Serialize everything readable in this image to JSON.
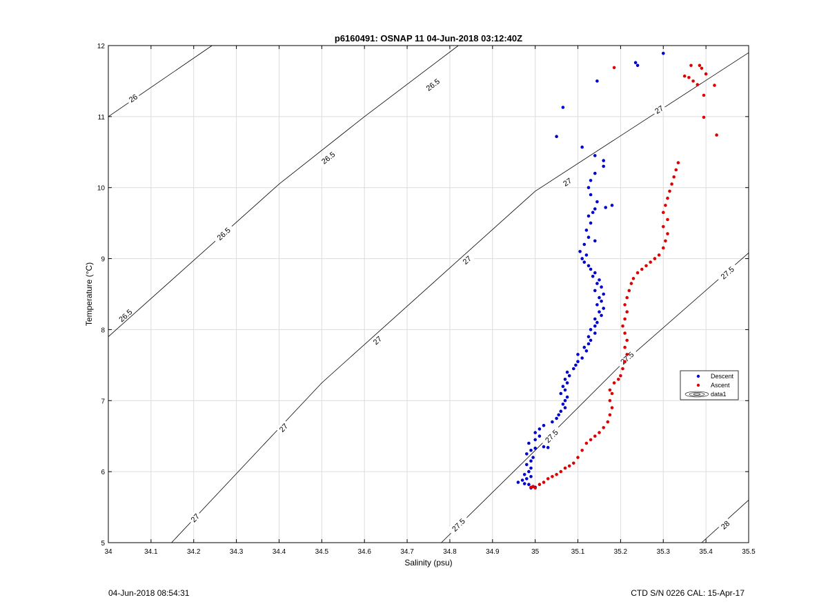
{
  "footer": {
    "left": "04-Jun-2018 08:54:31",
    "right": "CTD S/N 0226  CAL: 15-Apr-17"
  },
  "colors": {
    "descent": "#0000cc",
    "ascent": "#dd0000",
    "contour": "#000000",
    "grid": "#dcdcdc"
  },
  "chart_data": {
    "type": "scatter",
    "title": "p6160491: OSNAP 11 04-Jun-2018 03:12:40Z",
    "xlabel": "Salinity (psu)",
    "ylabel": "Temperature (°C)",
    "xlim": [
      34,
      35.5
    ],
    "ylim": [
      5,
      12
    ],
    "xticks": [
      34,
      34.1,
      34.2,
      34.3,
      34.4,
      34.5,
      34.6,
      34.7,
      34.8,
      34.9,
      35,
      35.1,
      35.2,
      35.3,
      35.4,
      35.5
    ],
    "xtick_labels": [
      "34",
      "34.1",
      "34.2",
      "34.3",
      "34.4",
      "34.5",
      "34.6",
      "34.7",
      "34.8",
      "34.9",
      "35",
      "35.1",
      "35.2",
      "35.3",
      "35.4",
      "35.5"
    ],
    "yticks": [
      5,
      6,
      7,
      8,
      9,
      10,
      11,
      12
    ],
    "ytick_labels": [
      "5",
      "6",
      "7",
      "8",
      "9",
      "10",
      "11",
      "12"
    ],
    "grid": true,
    "legend_position": "right",
    "legend": [
      "Descent",
      "Ascent",
      "data1"
    ],
    "density_contours": [
      {
        "label": "26",
        "points": [
          [
            34.0,
            11.0
          ],
          [
            34.243,
            12.0
          ]
        ],
        "label_at": [
          [
            34.058,
            11.26
          ]
        ]
      },
      {
        "label": "26.5",
        "points": [
          [
            34.0,
            7.9
          ],
          [
            34.4,
            10.05
          ],
          [
            34.6,
            11.0
          ],
          [
            34.82,
            12.0
          ]
        ],
        "label_at": [
          [
            34.04,
            8.2
          ],
          [
            34.27,
            9.35
          ],
          [
            34.515,
            10.42
          ],
          [
            34.76,
            11.45
          ]
        ]
      },
      {
        "label": "27",
        "points": [
          [
            34.148,
            5.0
          ],
          [
            34.5,
            7.25
          ],
          [
            35.0,
            9.95
          ],
          [
            35.5,
            11.9
          ]
        ],
        "label_at": [
          [
            34.203,
            5.35
          ],
          [
            34.41,
            6.62
          ],
          [
            34.63,
            7.85
          ],
          [
            34.84,
            8.98
          ],
          [
            35.075,
            10.08
          ],
          [
            35.29,
            11.1
          ]
        ]
      },
      {
        "label": "27.5",
        "points": [
          [
            34.78,
            5.0
          ],
          [
            35.0,
            6.3
          ],
          [
            35.2,
            7.5
          ],
          [
            35.5,
            9.08
          ]
        ],
        "label_at": [
          [
            34.82,
            5.25
          ],
          [
            35.038,
            6.5
          ],
          [
            35.215,
            7.6
          ],
          [
            35.45,
            8.8
          ]
        ]
      },
      {
        "label": "28",
        "points": [
          [
            35.39,
            5.0
          ],
          [
            35.5,
            5.6
          ]
        ],
        "label_at": [
          [
            35.445,
            5.25
          ]
        ]
      }
    ],
    "series": [
      {
        "name": "Descent",
        "color": "#0000cc",
        "points": [
          [
            34.99,
            5.77
          ],
          [
            34.995,
            5.79
          ],
          [
            35.0,
            5.78
          ],
          [
            34.985,
            5.82
          ],
          [
            34.975,
            5.83
          ],
          [
            34.96,
            5.85
          ],
          [
            34.97,
            5.88
          ],
          [
            34.98,
            5.9
          ],
          [
            34.99,
            5.93
          ],
          [
            34.975,
            5.96
          ],
          [
            34.985,
            6.0
          ],
          [
            34.99,
            6.05
          ],
          [
            34.98,
            6.1
          ],
          [
            34.99,
            6.15
          ],
          [
            34.995,
            6.2
          ],
          [
            34.98,
            6.25
          ],
          [
            34.99,
            6.3
          ],
          [
            35.0,
            6.33
          ],
          [
            35.02,
            6.35
          ],
          [
            35.03,
            6.34
          ],
          [
            34.985,
            6.4
          ],
          [
            35.0,
            6.45
          ],
          [
            35.01,
            6.5
          ],
          [
            35.0,
            6.55
          ],
          [
            35.01,
            6.6
          ],
          [
            35.02,
            6.65
          ],
          [
            35.04,
            6.7
          ],
          [
            35.05,
            6.75
          ],
          [
            35.055,
            6.8
          ],
          [
            35.06,
            6.85
          ],
          [
            35.07,
            6.9
          ],
          [
            35.065,
            6.95
          ],
          [
            35.07,
            7.0
          ],
          [
            35.075,
            7.05
          ],
          [
            35.06,
            7.1
          ],
          [
            35.07,
            7.15
          ],
          [
            35.065,
            7.2
          ],
          [
            35.075,
            7.25
          ],
          [
            35.07,
            7.3
          ],
          [
            35.08,
            7.35
          ],
          [
            35.075,
            7.4
          ],
          [
            35.09,
            7.45
          ],
          [
            35.095,
            7.5
          ],
          [
            35.1,
            7.55
          ],
          [
            35.11,
            7.6
          ],
          [
            35.1,
            7.65
          ],
          [
            35.12,
            7.7
          ],
          [
            35.115,
            7.75
          ],
          [
            35.125,
            7.8
          ],
          [
            35.13,
            7.85
          ],
          [
            35.125,
            7.9
          ],
          [
            35.14,
            7.95
          ],
          [
            35.13,
            8.0
          ],
          [
            35.14,
            8.05
          ],
          [
            35.145,
            8.1
          ],
          [
            35.14,
            8.15
          ],
          [
            35.155,
            8.2
          ],
          [
            35.15,
            8.25
          ],
          [
            35.16,
            8.3
          ],
          [
            35.145,
            8.35
          ],
          [
            35.155,
            8.4
          ],
          [
            35.15,
            8.45
          ],
          [
            35.16,
            8.5
          ],
          [
            35.14,
            8.55
          ],
          [
            35.155,
            8.6
          ],
          [
            35.145,
            8.65
          ],
          [
            35.15,
            8.7
          ],
          [
            35.135,
            8.75
          ],
          [
            35.14,
            8.8
          ],
          [
            35.13,
            8.85
          ],
          [
            35.125,
            8.9
          ],
          [
            35.115,
            8.95
          ],
          [
            35.11,
            9.0
          ],
          [
            35.12,
            9.05
          ],
          [
            35.105,
            9.1
          ],
          [
            35.115,
            9.2
          ],
          [
            35.14,
            9.25
          ],
          [
            35.125,
            9.3
          ],
          [
            35.12,
            9.4
          ],
          [
            35.13,
            9.5
          ],
          [
            35.125,
            9.6
          ],
          [
            35.135,
            9.65
          ],
          [
            35.14,
            9.7
          ],
          [
            35.165,
            9.72
          ],
          [
            35.18,
            9.75
          ],
          [
            35.145,
            9.8
          ],
          [
            35.13,
            9.9
          ],
          [
            35.125,
            10.0
          ],
          [
            35.13,
            10.1
          ],
          [
            35.14,
            10.2
          ],
          [
            35.16,
            10.3
          ],
          [
            35.16,
            10.38
          ],
          [
            35.14,
            10.45
          ],
          [
            35.11,
            10.57
          ],
          [
            35.05,
            10.72
          ],
          [
            35.065,
            11.13
          ],
          [
            35.145,
            11.5
          ],
          [
            35.24,
            11.72
          ],
          [
            35.235,
            11.76
          ],
          [
            35.3,
            11.89
          ]
        ]
      },
      {
        "name": "Ascent",
        "color": "#dd0000",
        "points": [
          [
            34.99,
            5.78
          ],
          [
            35.0,
            5.77
          ],
          [
            34.995,
            5.79
          ],
          [
            35.01,
            5.82
          ],
          [
            35.02,
            5.85
          ],
          [
            35.03,
            5.9
          ],
          [
            35.04,
            5.93
          ],
          [
            35.05,
            5.96
          ],
          [
            35.06,
            6.0
          ],
          [
            35.07,
            6.05
          ],
          [
            35.08,
            6.08
          ],
          [
            35.09,
            6.12
          ],
          [
            35.1,
            6.2
          ],
          [
            35.11,
            6.3
          ],
          [
            35.12,
            6.4
          ],
          [
            35.13,
            6.45
          ],
          [
            35.14,
            6.5
          ],
          [
            35.15,
            6.55
          ],
          [
            35.16,
            6.62
          ],
          [
            35.17,
            6.7
          ],
          [
            35.175,
            6.8
          ],
          [
            35.18,
            6.9
          ],
          [
            35.175,
            7.0
          ],
          [
            35.18,
            7.1
          ],
          [
            35.175,
            7.15
          ],
          [
            35.185,
            7.25
          ],
          [
            35.195,
            7.3
          ],
          [
            35.2,
            7.35
          ],
          [
            35.205,
            7.45
          ],
          [
            35.21,
            7.55
          ],
          [
            35.215,
            7.65
          ],
          [
            35.21,
            7.75
          ],
          [
            35.215,
            7.85
          ],
          [
            35.21,
            7.95
          ],
          [
            35.205,
            8.05
          ],
          [
            35.21,
            8.15
          ],
          [
            35.215,
            8.25
          ],
          [
            35.21,
            8.35
          ],
          [
            35.215,
            8.45
          ],
          [
            35.22,
            8.55
          ],
          [
            35.225,
            8.65
          ],
          [
            35.23,
            8.72
          ],
          [
            35.24,
            8.8
          ],
          [
            35.25,
            8.85
          ],
          [
            35.26,
            8.9
          ],
          [
            35.27,
            8.95
          ],
          [
            35.28,
            9.0
          ],
          [
            35.29,
            9.05
          ],
          [
            35.3,
            9.15
          ],
          [
            35.305,
            9.25
          ],
          [
            35.31,
            9.35
          ],
          [
            35.3,
            9.45
          ],
          [
            35.31,
            9.55
          ],
          [
            35.3,
            9.65
          ],
          [
            35.305,
            9.75
          ],
          [
            35.31,
            9.85
          ],
          [
            35.315,
            9.95
          ],
          [
            35.32,
            10.05
          ],
          [
            35.325,
            10.15
          ],
          [
            35.33,
            10.25
          ],
          [
            35.335,
            10.35
          ],
          [
            35.425,
            10.74
          ],
          [
            35.395,
            10.99
          ],
          [
            35.42,
            11.44
          ],
          [
            35.4,
            11.6
          ],
          [
            35.39,
            11.68
          ],
          [
            35.385,
            11.72
          ],
          [
            35.37,
            11.5
          ],
          [
            35.35,
            11.57
          ],
          [
            35.365,
            11.72
          ],
          [
            35.185,
            11.69
          ],
          [
            35.38,
            11.45
          ],
          [
            35.36,
            11.55
          ],
          [
            35.395,
            11.3
          ]
        ]
      }
    ]
  }
}
